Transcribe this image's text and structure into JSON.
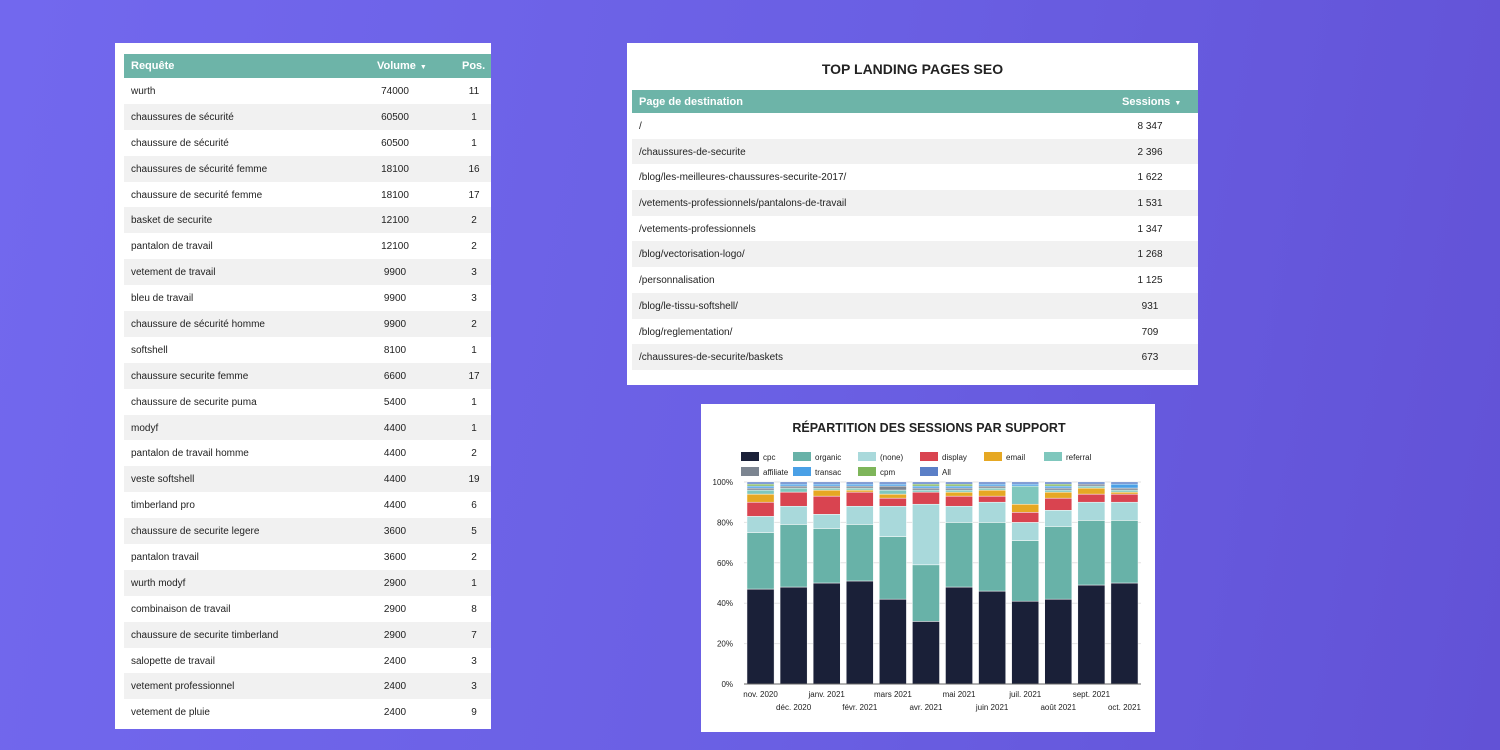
{
  "keywords_table": {
    "headers": {
      "query": "Requête",
      "volume": "Volume",
      "position": "Pos."
    },
    "sort_icon": "▼",
    "rows": [
      {
        "query": "wurth",
        "volume": "74000",
        "position": "11"
      },
      {
        "query": "chaussures de sécurité",
        "volume": "60500",
        "position": "1"
      },
      {
        "query": "chaussure de sécurité",
        "volume": "60500",
        "position": "1"
      },
      {
        "query": "chaussures de sécurité femme",
        "volume": "18100",
        "position": "16"
      },
      {
        "query": "chaussure de securité femme",
        "volume": "18100",
        "position": "17"
      },
      {
        "query": "basket de securite",
        "volume": "12100",
        "position": "2"
      },
      {
        "query": "pantalon de travail",
        "volume": "12100",
        "position": "2"
      },
      {
        "query": "vetement de travail",
        "volume": "9900",
        "position": "3"
      },
      {
        "query": "bleu de travail",
        "volume": "9900",
        "position": "3"
      },
      {
        "query": "chaussure de sécurité homme",
        "volume": "9900",
        "position": "2"
      },
      {
        "query": "softshell",
        "volume": "8100",
        "position": "1"
      },
      {
        "query": "chaussure securite femme",
        "volume": "6600",
        "position": "17"
      },
      {
        "query": "chaussure de securite puma",
        "volume": "5400",
        "position": "1"
      },
      {
        "query": "modyf",
        "volume": "4400",
        "position": "1"
      },
      {
        "query": "pantalon de travail homme",
        "volume": "4400",
        "position": "2"
      },
      {
        "query": "veste softshell",
        "volume": "4400",
        "position": "19"
      },
      {
        "query": "timberland pro",
        "volume": "4400",
        "position": "6"
      },
      {
        "query": "chaussure de securite legere",
        "volume": "3600",
        "position": "5"
      },
      {
        "query": "pantalon travail",
        "volume": "3600",
        "position": "2"
      },
      {
        "query": "wurth modyf",
        "volume": "2900",
        "position": "1"
      },
      {
        "query": "combinaison de travail",
        "volume": "2900",
        "position": "8"
      },
      {
        "query": "chaussure de securite timberland",
        "volume": "2900",
        "position": "7"
      },
      {
        "query": "salopette de travail",
        "volume": "2400",
        "position": "3"
      },
      {
        "query": "vetement professionnel",
        "volume": "2400",
        "position": "3"
      },
      {
        "query": "vetement de pluie",
        "volume": "2400",
        "position": "9"
      }
    ]
  },
  "landing_pages": {
    "title": "TOP LANDING PAGES SEO",
    "headers": {
      "page": "Page de destination",
      "sessions": "Sessions"
    },
    "sort_icon": "▼",
    "rows": [
      {
        "page": "/",
        "sessions": "8 347"
      },
      {
        "page": "/chaussures-de-securite",
        "sessions": "2 396"
      },
      {
        "page": "/blog/les-meilleures-chaussures-securite-2017/",
        "sessions": "1 622"
      },
      {
        "page": "/vetements-professionnels/pantalons-de-travail",
        "sessions": "1 531"
      },
      {
        "page": "/vetements-professionnels",
        "sessions": "1 347"
      },
      {
        "page": "/blog/vectorisation-logo/",
        "sessions": "1 268"
      },
      {
        "page": "/personnalisation",
        "sessions": "1 125"
      },
      {
        "page": "/blog/le-tissu-softshell/",
        "sessions": "931"
      },
      {
        "page": "/blog/reglementation/",
        "sessions": "709"
      },
      {
        "page": "/chaussures-de-securite/baskets",
        "sessions": "673"
      }
    ]
  },
  "chart_data": {
    "type": "bar",
    "stacked": "percent",
    "title": "RÉPARTITION DES SESSIONS PAR SUPPORT",
    "xlabel": "",
    "ylabel": "",
    "ylim": [
      0,
      100
    ],
    "y_ticks": [
      "0%",
      "20%",
      "40%",
      "60%",
      "80%",
      "100%"
    ],
    "categories": [
      "nov. 2020",
      "déc. 2020",
      "janv. 2021",
      "févr. 2021",
      "mars 2021",
      "avr. 2021",
      "mai 2021",
      "juin 2021",
      "juil. 2021",
      "août 2021",
      "sept. 2021",
      "oct. 2021"
    ],
    "series": [
      {
        "name": "cpc",
        "color": "#1a2038",
        "values": [
          47,
          48,
          50,
          51,
          42,
          31,
          48,
          46,
          41,
          42,
          49,
          50
        ]
      },
      {
        "name": "organic",
        "color": "#68b2a8",
        "values": [
          28,
          31,
          27,
          28,
          31,
          28,
          32,
          34,
          30,
          36,
          32,
          31
        ]
      },
      {
        "name": "(none)",
        "color": "#a9d9db",
        "values": [
          8,
          9,
          7,
          9,
          15,
          30,
          8,
          10,
          9,
          8,
          9,
          9
        ]
      },
      {
        "name": "display",
        "color": "#d94450",
        "values": [
          7,
          7,
          9,
          7,
          4,
          6,
          5,
          3,
          5,
          6,
          4,
          4
        ]
      },
      {
        "name": "email",
        "color": "#e6a823",
        "values": [
          4,
          0,
          3,
          1,
          2,
          0,
          2,
          3,
          4,
          3,
          3,
          1
        ]
      },
      {
        "name": "referral",
        "color": "#7fc7bd",
        "values": [
          2,
          2,
          1,
          1,
          2,
          1,
          1,
          1,
          9,
          1,
          1,
          1
        ]
      },
      {
        "name": "affiliate",
        "color": "#7c8591",
        "values": [
          1,
          1,
          1,
          1,
          2,
          1,
          1,
          1,
          0,
          1,
          1,
          1
        ]
      },
      {
        "name": "transac",
        "color": "#4aa0e6",
        "values": [
          1,
          1,
          1,
          1,
          1,
          1,
          1,
          1,
          1,
          1,
          0,
          2
        ]
      },
      {
        "name": "cpm",
        "color": "#7eb55a",
        "values": [
          1,
          0,
          0,
          0,
          0,
          1,
          1,
          0,
          0,
          1,
          0,
          0
        ]
      },
      {
        "name": "All",
        "color": "#5b7fc7",
        "values": [
          1,
          1,
          1,
          1,
          1,
          1,
          1,
          1,
          1,
          1,
          1,
          1
        ]
      }
    ]
  }
}
